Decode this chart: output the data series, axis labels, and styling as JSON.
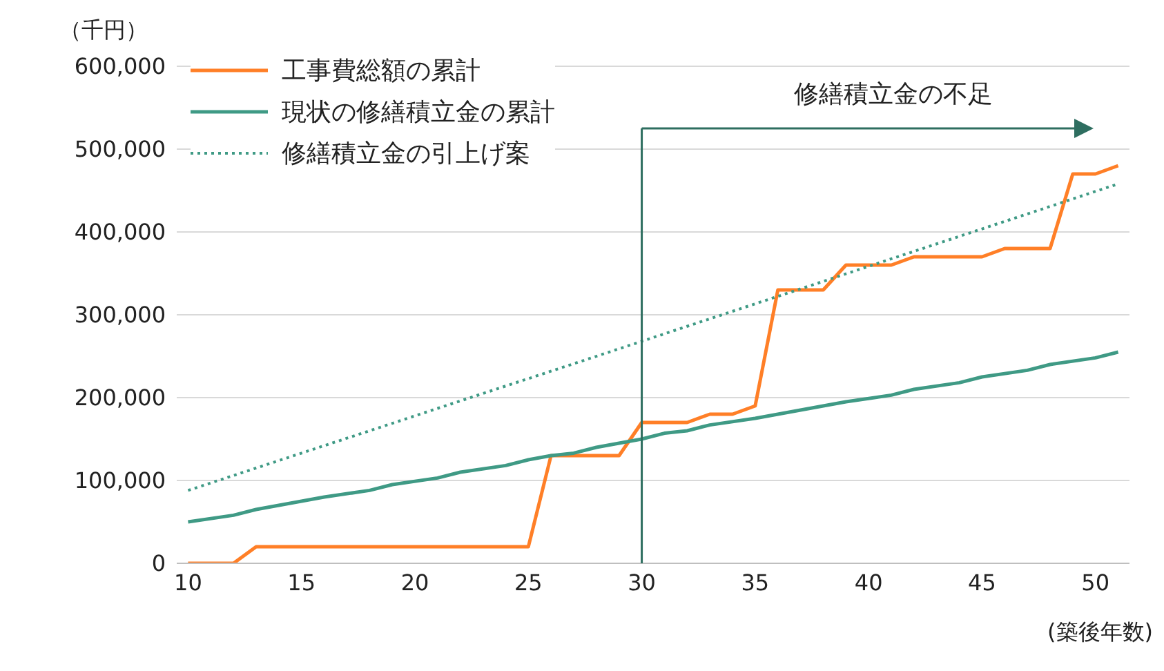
{
  "chart_data": {
    "type": "line",
    "ylabel": "（千円）",
    "xlabel": "(築後年数)",
    "xlim": [
      9.5,
      51.5
    ],
    "xticks": [
      10,
      15,
      20,
      25,
      30,
      35,
      40,
      45,
      50
    ],
    "ylim": [
      0,
      600000
    ],
    "yticks": [
      {
        "value": 0,
        "label": "0"
      },
      {
        "value": 100000,
        "label": "100,000"
      },
      {
        "value": 200000,
        "label": "200,000"
      },
      {
        "value": 300000,
        "label": "300,000"
      },
      {
        "value": 400000,
        "label": "400,000"
      },
      {
        "value": 500000,
        "label": "500,000"
      },
      {
        "value": 600000,
        "label": "600,000"
      }
    ],
    "grid": "y",
    "legend": "top left",
    "marker": "none",
    "series": [
      {
        "name": "工事費総額の累計",
        "color": "#ff7f27",
        "line_style": "solid",
        "x": [
          10,
          11,
          12,
          13,
          14,
          15,
          16,
          17,
          18,
          19,
          20,
          21,
          22,
          23,
          24,
          25,
          26,
          27,
          28,
          29,
          30,
          31,
          32,
          33,
          34,
          35,
          36,
          37,
          38,
          39,
          40,
          41,
          42,
          43,
          44,
          45,
          46,
          47,
          48,
          49,
          50,
          51
        ],
        "values": [
          0,
          0,
          0,
          20000,
          20000,
          20000,
          20000,
          20000,
          20000,
          20000,
          20000,
          20000,
          20000,
          20000,
          20000,
          20000,
          130000,
          130000,
          130000,
          130000,
          170000,
          170000,
          170000,
          180000,
          180000,
          190000,
          330000,
          330000,
          330000,
          360000,
          360000,
          360000,
          370000,
          370000,
          370000,
          370000,
          380000,
          380000,
          380000,
          470000,
          470000,
          480000
        ]
      },
      {
        "name": "現状の修繕積立金の累計",
        "color": "#3f9a85",
        "line_style": "solid",
        "x": [
          10,
          12,
          13,
          15,
          16,
          18,
          19,
          21,
          22,
          24,
          25,
          26,
          27,
          28,
          29,
          30,
          31,
          32,
          33,
          35,
          36,
          38,
          39,
          41,
          42,
          44,
          45,
          47,
          48,
          50,
          51
        ],
        "values": [
          50000,
          58000,
          65000,
          75000,
          80000,
          88000,
          95000,
          103000,
          110000,
          118000,
          125000,
          130000,
          133000,
          140000,
          145000,
          150000,
          157000,
          160000,
          167000,
          175000,
          180000,
          190000,
          195000,
          203000,
          210000,
          218000,
          225000,
          233000,
          240000,
          248000,
          255000
        ]
      },
      {
        "name": "修繕積立金の引上げ案",
        "color": "#3f9a85",
        "line_style": "dotted",
        "x": [
          10,
          30,
          51
        ],
        "values": [
          88000,
          268000,
          458000
        ]
      }
    ],
    "ref_lines": [
      {
        "axis": "x",
        "value": 30,
        "color": "#2e6e60"
      }
    ],
    "annotations": [
      "修繕積立金の不足"
    ]
  }
}
